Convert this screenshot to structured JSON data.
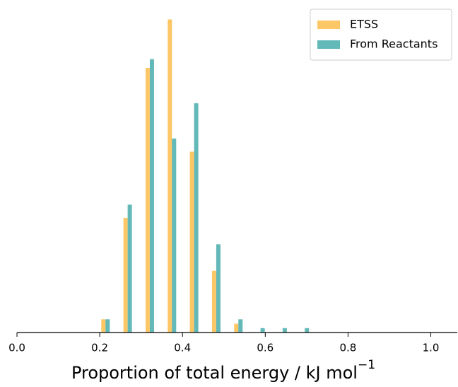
{
  "chart_data": {
    "type": "histogram",
    "bins": [
      0.187,
      0.241,
      0.294,
      0.348,
      0.401,
      0.455,
      0.508,
      0.562,
      0.615,
      0.669,
      0.722
    ],
    "series": [
      {
        "name": "ETSS",
        "color": "#fdc766",
        "values": [
          3,
          26,
          60,
          71,
          41,
          14,
          2,
          0,
          0,
          0
        ]
      },
      {
        "name": "From Reactants",
        "color": "#63b8b8",
        "values": [
          3,
          29,
          62,
          44,
          52,
          20,
          3,
          1,
          1,
          1
        ]
      }
    ],
    "xlim": [
      0,
      1.064
    ],
    "xticks": [
      {
        "value": 0,
        "label": "0.0"
      },
      0.2,
      0.4,
      0.6,
      0.8,
      {
        "value": 1,
        "label": "1.0"
      }
    ],
    "ylim": [
      0,
      73
    ],
    "xlabel": "Proportion of total energy / kJ mol",
    "xlabel_superscript": "−1",
    "legend": "upper right"
  }
}
